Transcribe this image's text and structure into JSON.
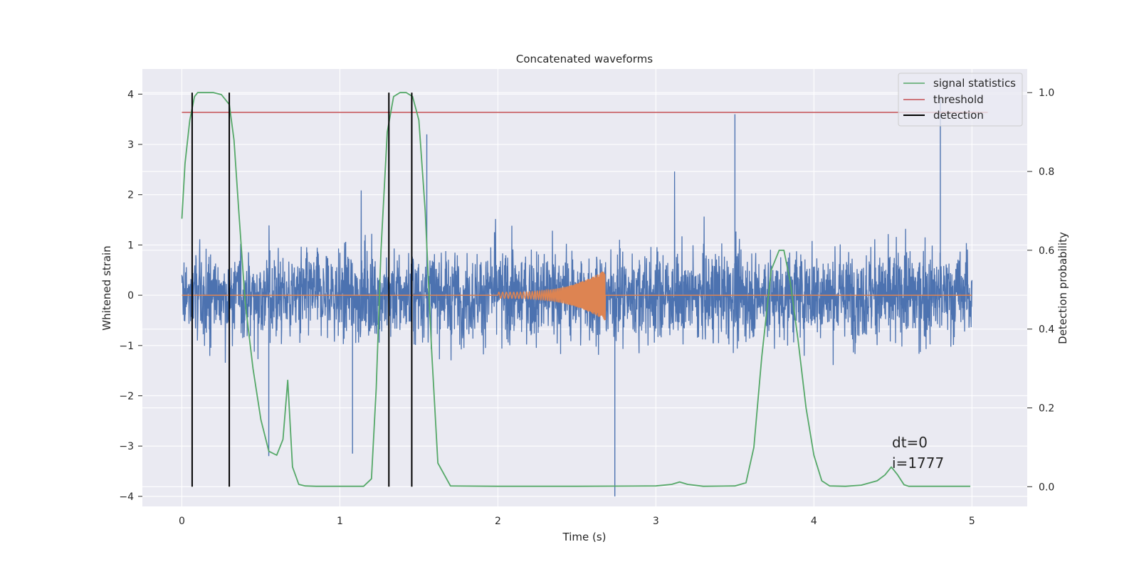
{
  "chart_data": {
    "type": "line",
    "title": "Concatenated waveforms",
    "xlabel": "Time (s)",
    "ylabel": "Whitened strain",
    "y2label": "Detection probability",
    "xlim": [
      -0.25,
      5.35
    ],
    "ylim": [
      -4.2,
      4.5
    ],
    "y2lim": [
      -0.05,
      1.06
    ],
    "xticks": [
      0,
      1,
      2,
      3,
      4,
      5
    ],
    "yticks": [
      -4,
      -3,
      -2,
      -1,
      0,
      1,
      2,
      3,
      4
    ],
    "y2ticks": [
      0.0,
      0.2,
      0.4,
      0.6,
      0.8,
      1.0
    ],
    "ytick_labels": [
      "−4",
      "−3",
      "−2",
      "−1",
      "0",
      "1",
      "2",
      "3",
      "4"
    ],
    "y2tick_labels": [
      "0.0",
      "0.2",
      "0.4",
      "0.6",
      "0.8",
      "1.0"
    ],
    "xtick_labels": [
      "0",
      "1",
      "2",
      "3",
      "4",
      "5"
    ],
    "grid": true,
    "legend_position": "top-right",
    "colors": {
      "background": "#eaeaf2",
      "grid": "#ffffff",
      "strain": "#4c72b0",
      "injection": "#dd8452",
      "signal_statistics": "#55a868",
      "threshold": "#c44e52",
      "detection": "#000000"
    },
    "series": [
      {
        "name": "signal statistics",
        "axis": "right",
        "x": [
          0,
          0.02,
          0.05,
          0.08,
          0.1,
          0.15,
          0.2,
          0.25,
          0.3,
          0.33,
          0.36,
          0.4,
          0.45,
          0.5,
          0.55,
          0.6,
          0.64,
          0.67,
          0.7,
          0.74,
          0.78,
          0.85,
          1.0,
          1.15,
          1.2,
          1.23,
          1.26,
          1.3,
          1.34,
          1.38,
          1.42,
          1.46,
          1.5,
          1.54,
          1.58,
          1.62,
          1.7,
          2.0,
          2.5,
          3.0,
          3.1,
          3.15,
          3.2,
          3.3,
          3.5,
          3.57,
          3.62,
          3.67,
          3.73,
          3.78,
          3.81,
          3.85,
          3.9,
          3.95,
          4.0,
          4.05,
          4.1,
          4.2,
          4.3,
          4.4,
          4.45,
          4.49,
          4.53,
          4.57,
          4.6,
          4.7,
          4.8,
          4.99
        ],
        "values": [
          0.68,
          0.82,
          0.93,
          0.99,
          1.0,
          1.0,
          1.0,
          0.995,
          0.97,
          0.88,
          0.7,
          0.47,
          0.3,
          0.17,
          0.09,
          0.08,
          0.12,
          0.27,
          0.05,
          0.006,
          0.002,
          0.001,
          0.001,
          0.001,
          0.02,
          0.25,
          0.6,
          0.9,
          0.99,
          1.0,
          1.0,
          0.99,
          0.93,
          0.7,
          0.35,
          0.06,
          0.002,
          0.001,
          0.001,
          0.002,
          0.006,
          0.012,
          0.006,
          0.001,
          0.002,
          0.01,
          0.1,
          0.33,
          0.55,
          0.6,
          0.6,
          0.52,
          0.37,
          0.2,
          0.08,
          0.015,
          0.002,
          0.001,
          0.004,
          0.015,
          0.03,
          0.05,
          0.03,
          0.005,
          0.001,
          0.001,
          0.001,
          0.001
        ]
      },
      {
        "name": "threshold",
        "axis": "right",
        "x": [
          0,
          5.1
        ],
        "values": [
          0.95,
          0.95
        ]
      },
      {
        "name": "detection",
        "axis": "right",
        "type": "vlines",
        "x": [
          0.065,
          0.3,
          1.31,
          1.455
        ],
        "ymin": 0.0,
        "ymax": 1.0
      },
      {
        "name": "",
        "axis": "left",
        "description": "whitened strain noise",
        "x_range": [
          0,
          5
        ],
        "typical_band": [
          -1.3,
          1.3
        ],
        "extremes": [
          [
            4.8,
            3.9
          ],
          [
            3.5,
            3.6
          ],
          [
            2.74,
            -4.0
          ],
          [
            0.55,
            -3.2
          ],
          [
            1.08,
            -3.15
          ],
          [
            1.55,
            3.2
          ]
        ]
      },
      {
        "name": "",
        "axis": "left",
        "description": "injected chirp waveform",
        "x_range": [
          2.0,
          2.68
        ],
        "peak_amplitude": 0.45
      }
    ],
    "annotations": [
      {
        "text": "dt=0",
        "x": 4.5,
        "y": -3.0
      },
      {
        "text": "i=1777",
        "x": 4.5,
        "y": -3.4
      }
    ]
  }
}
